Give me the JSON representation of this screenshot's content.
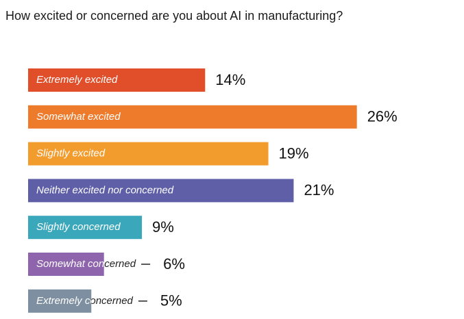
{
  "chart_data": {
    "type": "bar",
    "orientation": "horizontal",
    "title": "How excited or concerned are you about AI in manufacturing?",
    "categories": [
      "Extremely excited",
      "Somewhat excited",
      "Slightly excited",
      "Neither excited nor concerned",
      "Slightly concerned",
      "Somewhat concerned",
      "Extremely concerned"
    ],
    "values": [
      14,
      26,
      19,
      21,
      9,
      6,
      5
    ],
    "value_labels": [
      "14%",
      "26%",
      "19%",
      "21%",
      "9%",
      "6%",
      "5%"
    ],
    "colors": [
      "#e04e2a",
      "#ee7a2b",
      "#f39c2e",
      "#5f5fa8",
      "#3aa7bb",
      "#8e64ad",
      "#7d8fa0"
    ]
  }
}
